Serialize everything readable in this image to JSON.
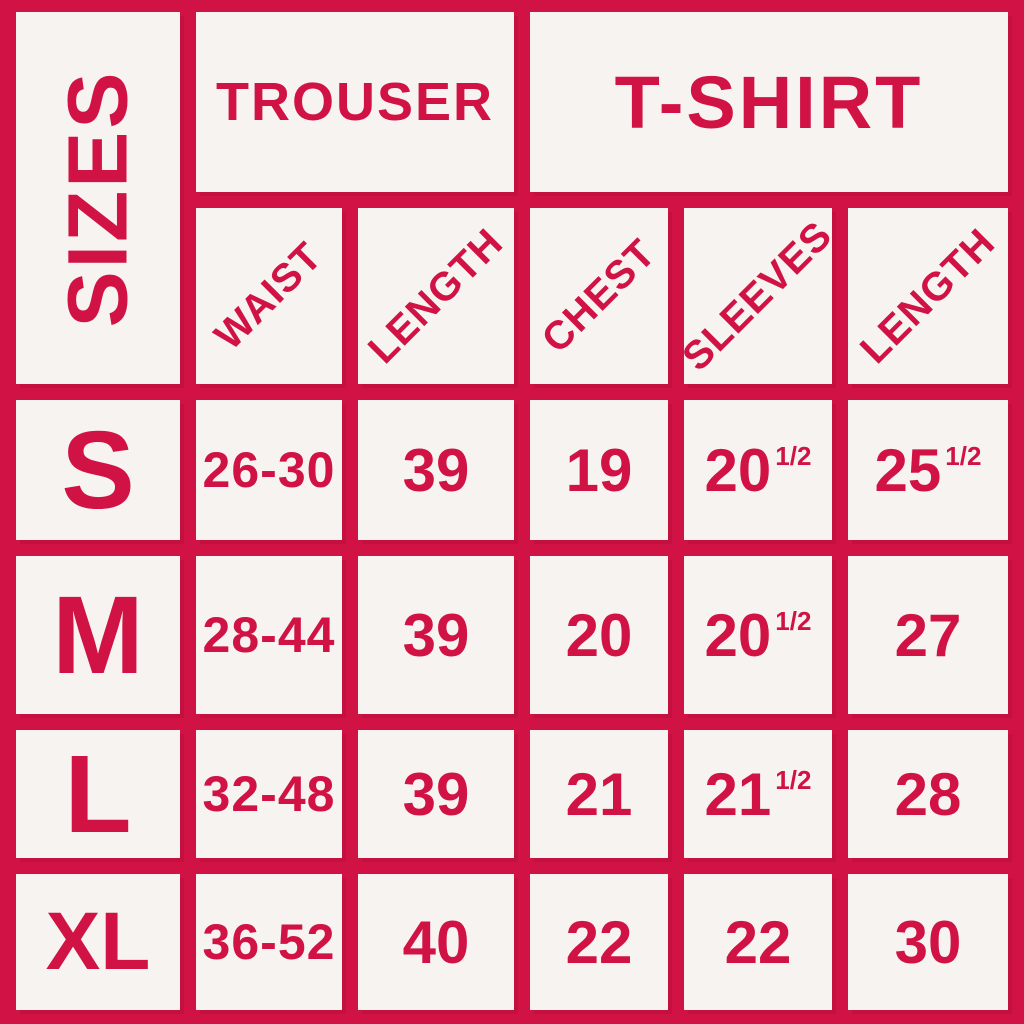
{
  "palette": {
    "background_red": "#D11244",
    "cell_white": "#F6F3F1",
    "text_red": "#D11244"
  },
  "chart_data": {
    "type": "table",
    "title": "SIZES",
    "column_groups": [
      {
        "label": "TROUSER",
        "columns": [
          "WAIST",
          "LENGTH"
        ]
      },
      {
        "label": "T-SHIRT",
        "columns": [
          "CHEST",
          "SLEEVES",
          "LENGTH"
        ]
      }
    ],
    "columns": [
      "WAIST",
      "LENGTH",
      "CHEST",
      "SLEEVES",
      "LENGTH"
    ],
    "rows": [
      {
        "size": "S",
        "values": [
          "26-30",
          "39",
          "19",
          "20 1/2",
          "25 1/2"
        ]
      },
      {
        "size": "M",
        "values": [
          "28-44",
          "39",
          "20",
          "20 1/2",
          "27"
        ]
      },
      {
        "size": "L",
        "values": [
          "32-48",
          "39",
          "21",
          "21 1/2",
          "28"
        ]
      },
      {
        "size": "XL",
        "values": [
          "36-52",
          "40",
          "22",
          "22",
          "30"
        ]
      }
    ]
  },
  "table": {
    "corner_label": "SIZES",
    "groups": [
      {
        "label": "TROUSER"
      },
      {
        "label": "T-SHIRT"
      }
    ],
    "headers": [
      "WAIST",
      "LENGTH",
      "CHEST",
      "SLEEVES",
      "LENGTH"
    ],
    "rows": [
      {
        "label": "S",
        "cells": [
          {
            "main": "26-30"
          },
          {
            "main": "39"
          },
          {
            "main": "19"
          },
          {
            "main": "20",
            "sup": "1/2"
          },
          {
            "main": "25",
            "sup": "1/2"
          }
        ]
      },
      {
        "label": "M",
        "cells": [
          {
            "main": "28-44"
          },
          {
            "main": "39"
          },
          {
            "main": "20"
          },
          {
            "main": "20",
            "sup": "1/2"
          },
          {
            "main": "27"
          }
        ]
      },
      {
        "label": "L",
        "cells": [
          {
            "main": "32-48"
          },
          {
            "main": "39"
          },
          {
            "main": "21"
          },
          {
            "main": "21",
            "sup": "1/2"
          },
          {
            "main": "28"
          }
        ]
      },
      {
        "label": "XL",
        "cells": [
          {
            "main": "36-52"
          },
          {
            "main": "40"
          },
          {
            "main": "22"
          },
          {
            "main": "22"
          },
          {
            "main": "30"
          }
        ]
      }
    ]
  }
}
